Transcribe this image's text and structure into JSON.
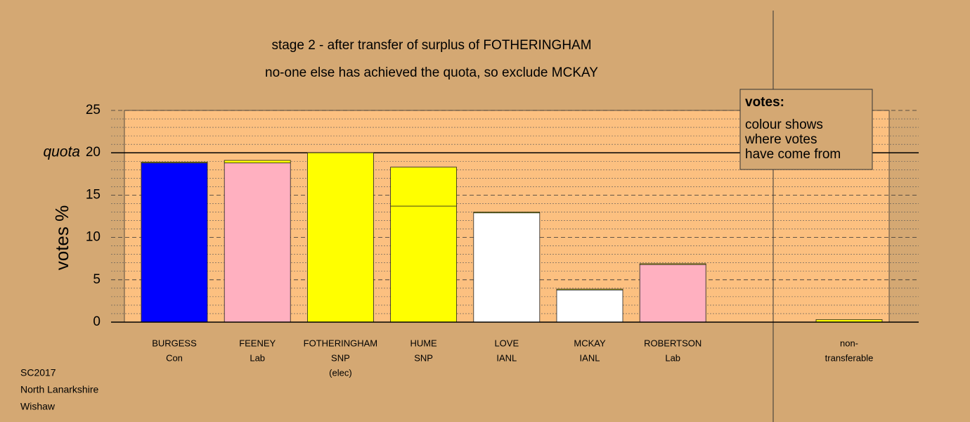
{
  "chart_data": {
    "type": "stacked-bar",
    "title": "stage 2 - after transfer of surplus of FOTHERINGHAM",
    "subtitle": "no-one else has achieved the quota, so exclude MCKAY",
    "ylabel": "votes %",
    "ylim": [
      0,
      25
    ],
    "yticks": [
      0,
      5,
      10,
      15,
      20,
      25
    ],
    "minor_step": 1,
    "quota": {
      "label": "quota",
      "value": 20
    },
    "bars": [
      {
        "label": [
          "BURGESS",
          "Con"
        ],
        "segments": [
          {
            "color": "#0000ff",
            "value": 18.8
          },
          {
            "color": "#ffff00",
            "value": 0.1
          }
        ]
      },
      {
        "label": [
          "FEENEY",
          "Lab"
        ],
        "segments": [
          {
            "color": "#ffb0c0",
            "value": 18.8
          },
          {
            "color": "#ffff00",
            "value": 0.3
          }
        ]
      },
      {
        "label": [
          "FOTHERINGHAM",
          "SNP",
          "(elec)"
        ],
        "segments": [
          {
            "color": "#ffff00",
            "value": 20.0
          }
        ]
      },
      {
        "label": [
          "HUME",
          "SNP"
        ],
        "segments": [
          {
            "color": "#ffff00",
            "value": 13.7
          },
          {
            "color": "#ffff00",
            "value": 4.6
          }
        ]
      },
      {
        "label": [
          "LOVE",
          "IANL"
        ],
        "segments": [
          {
            "color": "#ffffff",
            "value": 12.9
          },
          {
            "color": "#ffff00",
            "value": 0.1
          }
        ]
      },
      {
        "label": [
          "MCKAY",
          "IANL"
        ],
        "segments": [
          {
            "color": "#ffffff",
            "value": 3.8
          },
          {
            "color": "#ffff00",
            "value": 0.1
          }
        ]
      },
      {
        "label": [
          "ROBERTSON",
          "Lab"
        ],
        "segments": [
          {
            "color": "#ffb0c0",
            "value": 6.8
          },
          {
            "color": "#ffff00",
            "value": 0.1
          }
        ]
      },
      {
        "label": [
          "non-",
          "transferable"
        ],
        "segments": [
          {
            "color": "#ffff00",
            "value": 0.3
          }
        ]
      }
    ],
    "legend": {
      "title": "votes:",
      "lines": [
        "colour shows",
        "where votes",
        "have come from"
      ]
    },
    "footer": [
      "SC2017",
      "North Lanarkshire",
      "Wishaw"
    ]
  }
}
